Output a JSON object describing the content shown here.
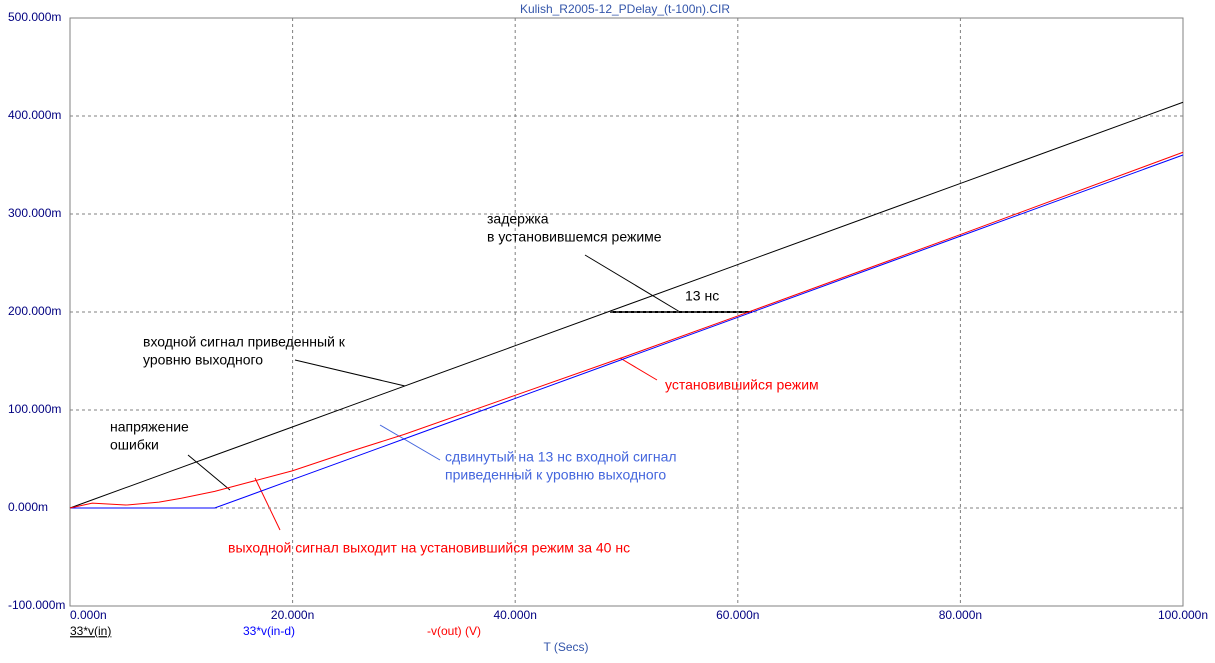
{
  "chart_data": {
    "type": "line",
    "title": "Kulish_R2005-12_PDelay_(t-100n).CIR",
    "x_label": "T (Secs)",
    "x": [
      0,
      2,
      5,
      8,
      10,
      13,
      16,
      20,
      25,
      30,
      40,
      50,
      60,
      80,
      100
    ],
    "series": [
      {
        "name": "33*v(in)",
        "color": "#000000",
        "values": [
          0,
          8.3,
          20.7,
          33.1,
          41.4,
          53.8,
          66.2,
          82.8,
          103.5,
          124.2,
          165.6,
          207,
          248.4,
          331.2,
          414
        ]
      },
      {
        "name": "33*v(in-d)",
        "color": "#0000ff",
        "values": [
          0,
          0,
          0,
          0,
          0,
          0,
          12.4,
          29,
          49.7,
          70.4,
          111.8,
          153.2,
          194.6,
          277.4,
          360.2
        ]
      },
      {
        "name": "-v(out) (V)",
        "color": "#ff0000",
        "values": [
          0,
          5,
          3,
          6,
          10,
          17,
          26,
          38,
          57,
          75,
          115,
          155,
          196,
          279,
          363
        ]
      }
    ],
    "xlim": [
      0,
      100
    ],
    "xticks": [
      {
        "value": 0,
        "label": "0.000n"
      },
      {
        "value": 20,
        "label": "20.000n"
      },
      {
        "value": 40,
        "label": "40.000n"
      },
      {
        "value": 60,
        "label": "60.000n"
      },
      {
        "value": 80,
        "label": "80.000n"
      },
      {
        "value": 100,
        "label": "100.000n"
      }
    ],
    "ylim": [
      -100,
      500
    ],
    "yticks": [
      {
        "value": -100,
        "label": "-100.000m"
      },
      {
        "value": 0,
        "label": "0.000m"
      },
      {
        "value": 100,
        "label": "100.000m"
      },
      {
        "value": 200,
        "label": "200.000m"
      },
      {
        "value": 300,
        "label": "300.000m"
      },
      {
        "value": 400,
        "label": "400.000m"
      },
      {
        "value": 500,
        "label": "500.000m"
      }
    ],
    "grid": true,
    "annotations": [
      {
        "lines": [
          "задержка",
          "в установившемся режиме"
        ],
        "color": "#000000"
      },
      {
        "lines": [
          "13 нс"
        ],
        "color": "#000000"
      },
      {
        "lines": [
          "входной сигнал приведенный к",
          "уровню выходного"
        ],
        "color": "#000000"
      },
      {
        "lines": [
          "установившийся режим"
        ],
        "color": "#ff0000"
      },
      {
        "lines": [
          "напряжение",
          "ошибки"
        ],
        "color": "#000000"
      },
      {
        "lines": [
          "сдвинутый на 13 нс входной сигнал",
          "приведенный к уровню выходного"
        ],
        "color": "#4466dd"
      },
      {
        "lines": [
          "выходной сигнал  выходит на установившийся режим за 40 нс"
        ],
        "color": "#ff0000"
      }
    ]
  }
}
